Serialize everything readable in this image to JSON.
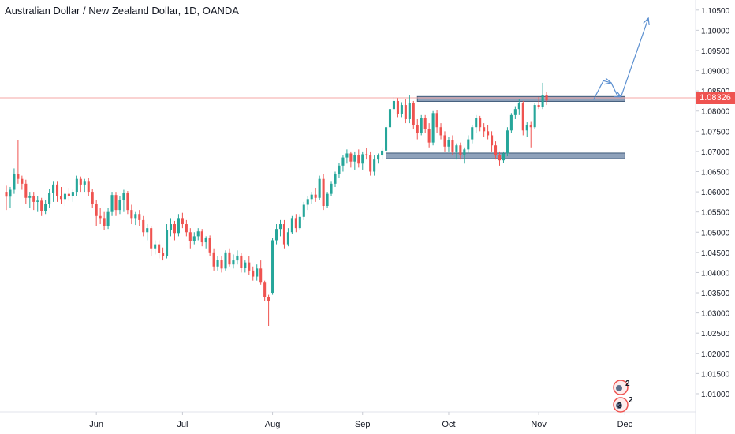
{
  "header": {
    "title": "Australian Dollar / New Zealand Dollar, 1D, OANDA"
  },
  "last_price": {
    "label": "1.08326",
    "value": 1.08326,
    "color": "#ef5350"
  },
  "colors": {
    "up": "#26a69a",
    "down": "#ef5350",
    "zone_fill": "#8fa2bb",
    "zone_stroke": "#3f5a7a",
    "arrow": "#5b8fd0",
    "axis_text": "#131722",
    "separator": "#e0e3eb"
  },
  "badges": [
    {
      "number": "2",
      "icon": "emoji-badge-icon"
    },
    {
      "number": "3",
      "icon": "emoji-badge-icon",
      "extra": "2"
    }
  ],
  "chart_data": {
    "type": "candlestick",
    "title": "Australian Dollar / New Zealand Dollar, 1D, OANDA",
    "ylim": [
      1.0055,
      1.1075
    ],
    "y_ticks": [
      "1.10500",
      "1.10000",
      "1.09500",
      "1.09000",
      "1.08500",
      "1.08000",
      "1.07500",
      "1.07000",
      "1.06500",
      "1.06000",
      "1.05500",
      "1.05000",
      "1.04500",
      "1.04000",
      "1.03500",
      "1.03000",
      "1.02500",
      "1.02000",
      "1.01500",
      "1.01000"
    ],
    "x_ticks": [
      {
        "label": "Jun",
        "index": 23
      },
      {
        "label": "Jul",
        "index": 45
      },
      {
        "label": "Aug",
        "index": 68
      },
      {
        "label": "Sep",
        "index": 91
      },
      {
        "label": "Oct",
        "index": 113
      },
      {
        "label": "Nov",
        "index": 136
      },
      {
        "label": "Dec",
        "index": 158
      }
    ],
    "x_range": [
      0,
      168
    ],
    "candles": [
      [
        1.06,
        1.0615,
        1.0555,
        1.0588
      ],
      [
        1.0588,
        1.0612,
        1.056,
        1.0605
      ],
      [
        1.0605,
        1.0658,
        1.0595,
        1.0645
      ],
      [
        1.0645,
        1.0728,
        1.062,
        1.0632
      ],
      [
        1.0632,
        1.064,
        1.0605,
        1.062
      ],
      [
        1.062,
        1.063,
        1.057,
        1.0585
      ],
      [
        1.0585,
        1.06,
        1.056,
        1.059
      ],
      [
        1.059,
        1.06,
        1.0555,
        1.0575
      ],
      [
        1.0575,
        1.059,
        1.055,
        1.0578
      ],
      [
        1.0578,
        1.0585,
        1.054,
        1.0552
      ],
      [
        1.0552,
        1.058,
        1.0545,
        1.057
      ],
      [
        1.057,
        1.0608,
        1.056,
        1.0598
      ],
      [
        1.0598,
        1.0625,
        1.0575,
        1.0618
      ],
      [
        1.0618,
        1.0625,
        1.0575,
        1.059
      ],
      [
        1.059,
        1.0612,
        1.057,
        1.0582
      ],
      [
        1.0582,
        1.06,
        1.0565,
        1.0595
      ],
      [
        1.0595,
        1.061,
        1.0578,
        1.059
      ],
      [
        1.059,
        1.0605,
        1.0575,
        1.06
      ],
      [
        1.06,
        1.064,
        1.059,
        1.0632
      ],
      [
        1.0632,
        1.0638,
        1.06,
        1.0618
      ],
      [
        1.0618,
        1.0632,
        1.06,
        1.0625
      ],
      [
        1.0625,
        1.0635,
        1.059,
        1.06
      ],
      [
        1.06,
        1.0608,
        1.056,
        1.057
      ],
      [
        1.057,
        1.058,
        1.0515,
        1.054
      ],
      [
        1.054,
        1.056,
        1.052,
        1.0535
      ],
      [
        1.0535,
        1.055,
        1.0505,
        1.0515
      ],
      [
        1.0515,
        1.056,
        1.0508,
        1.055
      ],
      [
        1.055,
        1.06,
        1.054,
        1.0592
      ],
      [
        1.0592,
        1.06,
        1.054,
        1.0555
      ],
      [
        1.0555,
        1.059,
        1.0545,
        1.058
      ],
      [
        1.058,
        1.0605,
        1.055,
        1.0598
      ],
      [
        1.0598,
        1.0602,
        1.0545,
        1.0555
      ],
      [
        1.0555,
        1.0568,
        1.052,
        1.0535
      ],
      [
        1.0535,
        1.055,
        1.0518,
        1.0545
      ],
      [
        1.0545,
        1.0555,
        1.0515,
        1.053
      ],
      [
        1.053,
        1.054,
        1.049,
        1.05
      ],
      [
        1.05,
        1.052,
        1.048,
        1.051
      ],
      [
        1.051,
        1.0515,
        1.044,
        1.046
      ],
      [
        1.046,
        1.048,
        1.0445,
        1.047
      ],
      [
        1.047,
        1.048,
        1.0435,
        1.0448
      ],
      [
        1.0448,
        1.0462,
        1.043,
        1.044
      ],
      [
        1.044,
        1.052,
        1.0435,
        1.0505
      ],
      [
        1.0505,
        1.0535,
        1.049,
        1.052
      ],
      [
        1.052,
        1.0528,
        1.048,
        1.0498
      ],
      [
        1.0498,
        1.0545,
        1.049,
        1.0535
      ],
      [
        1.0535,
        1.0548,
        1.051,
        1.052
      ],
      [
        1.052,
        1.053,
        1.049,
        1.05
      ],
      [
        1.05,
        1.051,
        1.046,
        1.0478
      ],
      [
        1.0478,
        1.05,
        1.047,
        1.049
      ],
      [
        1.049,
        1.051,
        1.048,
        1.0502
      ],
      [
        1.0502,
        1.0508,
        1.0465,
        1.0475
      ],
      [
        1.0475,
        1.049,
        1.046,
        1.0485
      ],
      [
        1.0485,
        1.0492,
        1.044,
        1.045
      ],
      [
        1.045,
        1.046,
        1.0405,
        1.0415
      ],
      [
        1.0415,
        1.044,
        1.0405,
        1.0432
      ],
      [
        1.0432,
        1.044,
        1.04,
        1.041
      ],
      [
        1.041,
        1.0455,
        1.0405,
        1.045
      ],
      [
        1.045,
        1.046,
        1.0415,
        1.042
      ],
      [
        1.042,
        1.0445,
        1.041,
        1.043
      ],
      [
        1.043,
        1.0455,
        1.042,
        1.0442
      ],
      [
        1.0442,
        1.0448,
        1.04,
        1.0412
      ],
      [
        1.0412,
        1.043,
        1.04,
        1.0425
      ],
      [
        1.0425,
        1.044,
        1.0395,
        1.0405
      ],
      [
        1.0405,
        1.0415,
        1.038,
        1.039
      ],
      [
        1.039,
        1.042,
        1.038,
        1.041
      ],
      [
        1.041,
        1.043,
        1.037,
        1.0375
      ],
      [
        1.0375,
        1.038,
        1.033,
        1.034
      ],
      [
        1.034,
        1.0345,
        1.0268,
        1.033
      ],
      [
        1.035,
        1.0485,
        1.0345,
        1.048
      ],
      [
        1.048,
        1.052,
        1.047,
        1.0508
      ],
      [
        1.0508,
        1.053,
        1.049,
        1.052
      ],
      [
        1.052,
        1.053,
        1.046,
        1.047
      ],
      [
        1.047,
        1.051,
        1.0465,
        1.05
      ],
      [
        1.05,
        1.054,
        1.0495,
        1.0535
      ],
      [
        1.0535,
        1.0545,
        1.05,
        1.051
      ],
      [
        1.051,
        1.0545,
        1.0505,
        1.0538
      ],
      [
        1.0538,
        1.0575,
        1.053,
        1.0568
      ],
      [
        1.0568,
        1.059,
        1.0555,
        1.0582
      ],
      [
        1.0582,
        1.06,
        1.057,
        1.0593
      ],
      [
        1.0593,
        1.061,
        1.0575,
        1.0585
      ],
      [
        1.0585,
        1.064,
        1.058,
        1.0632
      ],
      [
        1.0632,
        1.0645,
        1.0555,
        1.0565
      ],
      [
        1.0565,
        1.06,
        1.056,
        1.0595
      ],
      [
        1.0595,
        1.0625,
        1.059,
        1.062
      ],
      [
        1.062,
        1.065,
        1.0612,
        1.0645
      ],
      [
        1.0645,
        1.0672,
        1.0635,
        1.0665
      ],
      [
        1.0665,
        1.069,
        1.065,
        1.0685
      ],
      [
        1.0685,
        1.0705,
        1.067,
        1.0695
      ],
      [
        1.0695,
        1.07,
        1.066,
        1.0675
      ],
      [
        1.0675,
        1.07,
        1.0655,
        1.069
      ],
      [
        1.069,
        1.0705,
        1.066,
        1.067
      ],
      [
        1.067,
        1.07,
        1.0655,
        1.0693
      ],
      [
        1.0693,
        1.0708,
        1.068,
        1.069
      ],
      [
        1.069,
        1.07,
        1.064,
        1.065
      ],
      [
        1.065,
        1.069,
        1.064,
        1.068
      ],
      [
        1.068,
        1.0695,
        1.067,
        1.069
      ],
      [
        1.069,
        1.071,
        1.068,
        1.0702
      ],
      [
        1.0702,
        1.0765,
        1.0695,
        1.076
      ],
      [
        1.076,
        1.081,
        1.075,
        1.0805
      ],
      [
        1.0805,
        1.0835,
        1.0795,
        1.0825
      ],
      [
        1.0825,
        1.0832,
        1.0785,
        1.0792
      ],
      [
        1.0792,
        1.0822,
        1.0785,
        1.0815
      ],
      [
        1.0815,
        1.083,
        1.077,
        1.078
      ],
      [
        1.078,
        1.084,
        1.077,
        1.082
      ],
      [
        1.082,
        1.0825,
        1.0755,
        1.0765
      ],
      [
        1.0765,
        1.078,
        1.073,
        1.0745
      ],
      [
        1.0745,
        1.079,
        1.074,
        1.0782
      ],
      [
        1.0782,
        1.079,
        1.0745,
        1.0755
      ],
      [
        1.0755,
        1.077,
        1.071,
        1.0722
      ],
      [
        1.0722,
        1.08,
        1.0715,
        1.0795
      ],
      [
        1.0795,
        1.0802,
        1.0745,
        1.076
      ],
      [
        1.076,
        1.077,
        1.073,
        1.074
      ],
      [
        1.074,
        1.075,
        1.07,
        1.0712
      ],
      [
        1.0712,
        1.0735,
        1.07,
        1.0728
      ],
      [
        1.0728,
        1.074,
        1.069,
        1.07
      ],
      [
        1.07,
        1.072,
        1.068,
        1.0715
      ],
      [
        1.0715,
        1.0722,
        1.068,
        1.0692
      ],
      [
        1.0692,
        1.071,
        1.067,
        1.0705
      ],
      [
        1.0705,
        1.074,
        1.0695,
        1.073
      ],
      [
        1.073,
        1.0765,
        1.072,
        1.076
      ],
      [
        1.076,
        1.079,
        1.0745,
        1.0782
      ],
      [
        1.0782,
        1.0788,
        1.075,
        1.076
      ],
      [
        1.076,
        1.077,
        1.0735,
        1.075
      ],
      [
        1.075,
        1.0765,
        1.073,
        1.074
      ],
      [
        1.074,
        1.075,
        1.07,
        1.0715
      ],
      [
        1.0715,
        1.0725,
        1.068,
        1.069
      ],
      [
        1.069,
        1.07,
        1.0665,
        1.0678
      ],
      [
        1.0678,
        1.07,
        1.0672,
        1.0695
      ],
      [
        1.0695,
        1.076,
        1.0688,
        1.0752
      ],
      [
        1.0752,
        1.0795,
        1.0745,
        1.079
      ],
      [
        1.079,
        1.0812,
        1.078,
        1.0805
      ],
      [
        1.0805,
        1.083,
        1.079,
        1.082
      ],
      [
        1.082,
        1.0825,
        1.074,
        1.0752
      ],
      [
        1.0752,
        1.0772,
        1.0735,
        1.0765
      ],
      [
        1.0765,
        1.0775,
        1.071,
        1.076
      ],
      [
        1.076,
        1.082,
        1.0755,
        1.0815
      ],
      [
        1.0815,
        1.0835,
        1.0805,
        1.081
      ],
      [
        1.081,
        1.087,
        1.0805,
        1.084
      ],
      [
        1.084,
        1.0848,
        1.0815,
        1.0826
      ]
    ],
    "zones": [
      {
        "x_start": 105,
        "x_end": 158,
        "y_low": 1.0824,
        "y_high": 1.0836
      },
      {
        "x_start": 97,
        "x_end": 158,
        "y_low": 1.0682,
        "y_high": 1.0696
      }
    ],
    "arrows": [
      {
        "points": [
          [
            150,
            1.0828
          ],
          [
            152.5,
            1.0875
          ],
          [
            154.5,
            1.087
          ]
        ]
      },
      {
        "points": [
          [
            154.5,
            1.087
          ],
          [
            156,
            1.084
          ],
          [
            157,
            1.0835
          ]
        ]
      },
      {
        "points": [
          [
            157,
            1.0835
          ],
          [
            164,
            1.103
          ]
        ]
      }
    ]
  }
}
